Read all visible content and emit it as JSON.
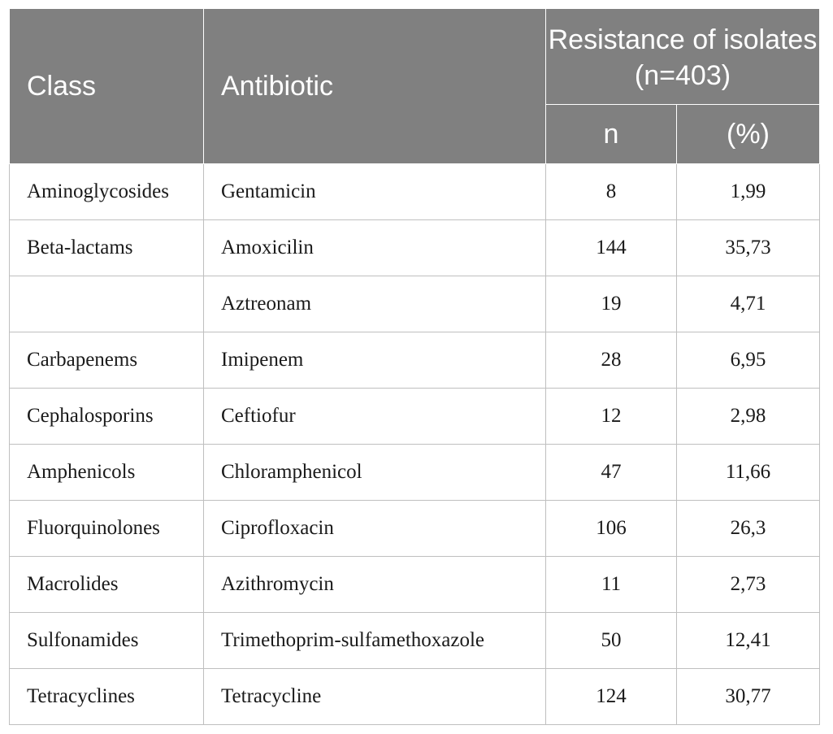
{
  "table": {
    "headers": {
      "class": "Class",
      "antibiotic": "Antibiotic",
      "resistance_group": "Resistance of isolates (n=403)",
      "n": "n",
      "percent": "(%)"
    },
    "rows": [
      {
        "class": "Aminoglycosides",
        "antibiotic": "Gentamicin",
        "n": "8",
        "percent": "1,99"
      },
      {
        "class": "Beta-lactams",
        "antibiotic": "Amoxicilin",
        "n": "144",
        "percent": "35,73"
      },
      {
        "class": "",
        "antibiotic": "Aztreonam",
        "n": "19",
        "percent": "4,71"
      },
      {
        "class": "Carbapenems",
        "antibiotic": "Imipenem",
        "n": "28",
        "percent": "6,95"
      },
      {
        "class": "Cephalosporins",
        "antibiotic": "Ceftiofur",
        "n": "12",
        "percent": "2,98"
      },
      {
        "class": "Amphenicols",
        "antibiotic": "Chloramphenicol",
        "n": "47",
        "percent": "11,66"
      },
      {
        "class": "Fluorquinolones",
        "antibiotic": "Ciprofloxacin",
        "n": "106",
        "percent": "26,3"
      },
      {
        "class": "Macrolides",
        "antibiotic": "Azithromycin",
        "n": "11",
        "percent": "2,73"
      },
      {
        "class": "Sulfonamides",
        "antibiotic": "Trimethoprim-sulfamethoxazole",
        "n": "50",
        "percent": "12,41"
      },
      {
        "class": "Tetracyclines",
        "antibiotic": "Tetracycline",
        "n": "124",
        "percent": "30,77"
      }
    ]
  }
}
